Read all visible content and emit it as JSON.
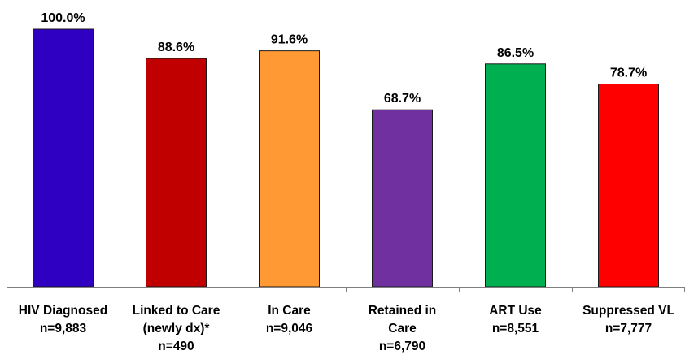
{
  "chart_data": {
    "type": "bar",
    "title": "",
    "xlabel": "",
    "ylabel": "",
    "ylim": [
      0,
      100
    ],
    "grid": false,
    "legend": "none",
    "categories": [
      {
        "lines": [
          "HIV Diagnosed",
          "n=9,883"
        ]
      },
      {
        "lines": [
          "Linked to Care",
          "(newly dx)*",
          "n=490"
        ]
      },
      {
        "lines": [
          "In Care",
          "n=9,046"
        ]
      },
      {
        "lines": [
          "Retained in",
          "Care",
          "n=6,790"
        ]
      },
      {
        "lines": [
          "ART Use",
          "n=8,551"
        ]
      },
      {
        "lines": [
          "Suppressed VL",
          "n=7,777"
        ]
      }
    ],
    "values": [
      100.0,
      88.6,
      91.6,
      68.7,
      86.5,
      78.7
    ],
    "data_labels": [
      "100.0%",
      "88.6%",
      "91.6%",
      "68.7%",
      "86.5%",
      "78.7%"
    ],
    "colors": [
      "#2F00C1",
      "#C00000",
      "#FF9933",
      "#7030A0",
      "#00B050",
      "#FF0000"
    ]
  }
}
